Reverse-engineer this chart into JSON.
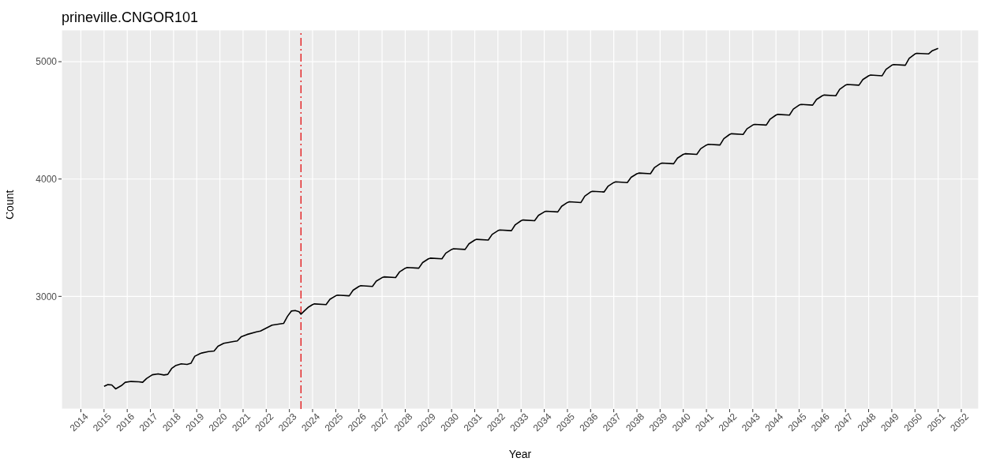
{
  "chart_data": {
    "type": "line",
    "title": "prineville.CNGOR101",
    "xlabel": "Year",
    "ylabel": "Count",
    "xlim": [
      "2013-03",
      "2052-10"
    ],
    "xticks": [
      "2014",
      "2015",
      "2016",
      "2017",
      "2018",
      "2019",
      "2020",
      "2021",
      "2022",
      "2023",
      "2024",
      "2025",
      "2026",
      "2027",
      "2028",
      "2029",
      "2030",
      "2031",
      "2032",
      "2033",
      "2034",
      "2035",
      "2036",
      "2037",
      "2038",
      "2039",
      "2040",
      "2041",
      "2042",
      "2043",
      "2044",
      "2045",
      "2046",
      "2047",
      "2048",
      "2049",
      "2050",
      "2051",
      "2052"
    ],
    "ylim": [
      2040,
      5270
    ],
    "yticks": [
      3000,
      4000,
      5000
    ],
    "grid": true,
    "marker": "none",
    "line_style": "solid",
    "ref_lines": [
      {
        "axis": "x",
        "value": "2023-07",
        "color": "#e41a1c",
        "line_style": "dashed"
      }
    ],
    "series": [
      {
        "color": "#000000",
        "x": [
          "2015-01",
          "2015-03",
          "2015-05",
          "2015-07",
          "2015-10",
          "2015-12",
          "2016-03",
          "2016-07",
          "2016-09",
          "2016-11",
          "2017-02",
          "2017-05",
          "2017-08",
          "2017-10",
          "2017-12",
          "2018-02",
          "2018-05",
          "2018-08",
          "2018-10",
          "2018-12",
          "2019-03",
          "2019-07",
          "2019-10",
          "2019-12",
          "2020-03",
          "2020-08",
          "2020-10",
          "2020-12",
          "2021-03",
          "2021-08",
          "2021-10",
          "2022-01",
          "2022-04",
          "2022-08",
          "2022-10",
          "2022-12",
          "2023-02",
          "2023-04",
          "2023-06",
          "2023-07",
          "2023-09",
          "2023-11",
          "2024-01",
          "2024-02",
          "2024-08",
          "2024-10",
          "2025-01",
          "2025-02",
          "2025-08",
          "2025-10",
          "2026-01",
          "2026-02",
          "2026-08",
          "2026-10",
          "2027-01",
          "2027-02",
          "2027-08",
          "2027-10",
          "2028-01",
          "2028-02",
          "2028-08",
          "2028-10",
          "2029-01",
          "2029-02",
          "2029-08",
          "2029-10",
          "2030-01",
          "2030-02",
          "2030-08",
          "2030-10",
          "2031-01",
          "2031-02",
          "2031-08",
          "2031-10",
          "2032-01",
          "2032-02",
          "2032-08",
          "2032-10",
          "2033-01",
          "2033-02",
          "2033-08",
          "2033-10",
          "2034-01",
          "2034-02",
          "2034-08",
          "2034-10",
          "2035-01",
          "2035-02",
          "2035-08",
          "2035-10",
          "2036-01",
          "2036-02",
          "2036-08",
          "2036-10",
          "2037-01",
          "2037-02",
          "2037-08",
          "2037-10",
          "2038-01",
          "2038-02",
          "2038-08",
          "2038-10",
          "2039-01",
          "2039-02",
          "2039-08",
          "2039-10",
          "2040-01",
          "2040-02",
          "2040-08",
          "2040-10",
          "2041-01",
          "2041-02",
          "2041-08",
          "2041-10",
          "2042-01",
          "2042-02",
          "2042-08",
          "2042-10",
          "2043-01",
          "2043-02",
          "2043-08",
          "2043-10",
          "2044-01",
          "2044-02",
          "2044-08",
          "2044-10",
          "2045-01",
          "2045-02",
          "2045-08",
          "2045-10",
          "2046-01",
          "2046-02",
          "2046-08",
          "2046-10",
          "2047-01",
          "2047-02",
          "2047-08",
          "2047-10",
          "2048-01",
          "2048-02",
          "2048-08",
          "2048-10",
          "2049-01",
          "2049-02",
          "2049-08",
          "2049-10",
          "2050-01",
          "2050-02",
          "2050-08",
          "2050-10",
          "2051-01"
        ],
        "values": [
          2233,
          2248,
          2245,
          2212,
          2240,
          2268,
          2275,
          2272,
          2268,
          2300,
          2332,
          2340,
          2330,
          2335,
          2385,
          2410,
          2425,
          2420,
          2430,
          2490,
          2515,
          2530,
          2535,
          2575,
          2600,
          2615,
          2620,
          2655,
          2675,
          2698,
          2705,
          2730,
          2755,
          2765,
          2770,
          2830,
          2875,
          2880,
          2870,
          2848,
          2880,
          2910,
          2930,
          2936,
          2930,
          2975,
          3005,
          3011,
          3005,
          3053,
          3085,
          3091,
          3085,
          3130,
          3160,
          3166,
          3160,
          3208,
          3240,
          3246,
          3240,
          3288,
          3320,
          3326,
          3320,
          3368,
          3400,
          3406,
          3400,
          3448,
          3480,
          3486,
          3480,
          3528,
          3560,
          3566,
          3560,
          3611,
          3645,
          3651,
          3645,
          3690,
          3720,
          3726,
          3720,
          3768,
          3800,
          3806,
          3800,
          3854,
          3890,
          3896,
          3890,
          3938,
          3970,
          3976,
          3970,
          4015,
          4045,
          4051,
          4045,
          4096,
          4130,
          4136,
          4130,
          4178,
          4210,
          4216,
          4210,
          4258,
          4290,
          4296,
          4290,
          4344,
          4380,
          4386,
          4380,
          4428,
          4460,
          4466,
          4460,
          4511,
          4545,
          4551,
          4545,
          4596,
          4630,
          4636,
          4630,
          4678,
          4710,
          4716,
          4710,
          4764,
          4800,
          4806,
          4800,
          4848,
          4880,
          4886,
          4880,
          4934,
          4970,
          4976,
          4970,
          5028,
          5066,
          5072,
          5066,
          5094,
          5113
        ]
      }
    ]
  }
}
